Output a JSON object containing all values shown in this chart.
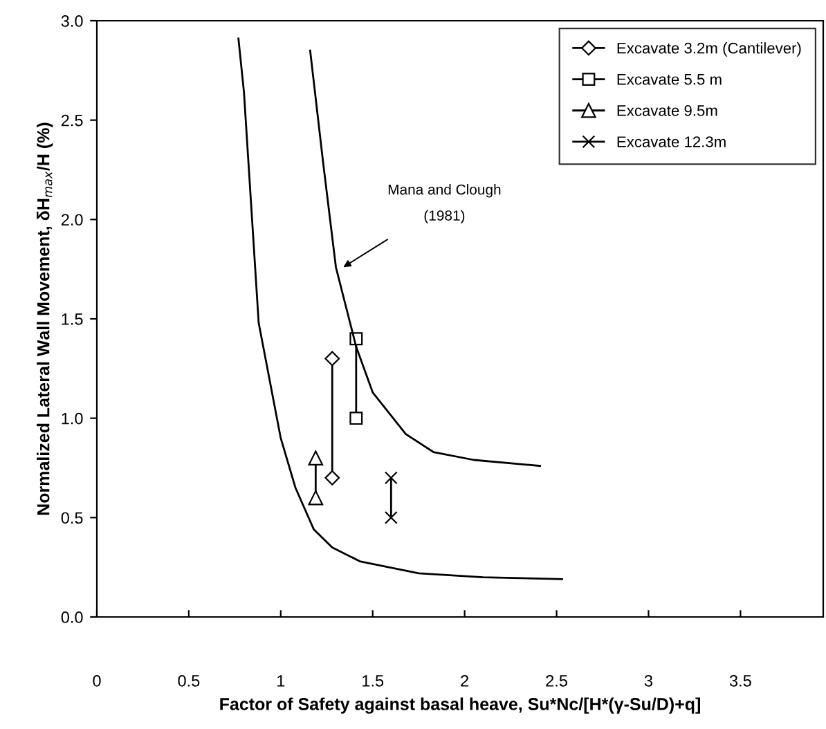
{
  "chart_data": {
    "type": "line",
    "xlabel": "Factor of Safety against basal heave, Su*Nc/[H*(γ-Su/D)+q]",
    "ylabel": "Normalized Lateral Wall Movement, δH$_{max}$/H (%)",
    "series": [
      {
        "name": "Excavate 3.2m (Cantilever)",
        "color": "#000000",
        "marker": "diamond",
        "x": [
          1.28,
          1.28
        ],
        "values": [
          1.3,
          0.7
        ]
      },
      {
        "name": "Excavate 5.5 m",
        "color": "#000000",
        "marker": "square",
        "x": [
          1.41,
          1.41
        ],
        "values": [
          1.4,
          1.0
        ]
      },
      {
        "name": "Excavate 9.5m",
        "color": "#000000",
        "marker": "triangle",
        "x": [
          1.19,
          1.19
        ],
        "values": [
          0.8,
          0.6
        ]
      },
      {
        "name": "Excavate 12.3m",
        "color": "#000000",
        "marker": "cross",
        "x": [
          1.6,
          1.6
        ],
        "values": [
          0.7,
          0.5
        ]
      },
      {
        "color": "#000000",
        "marker": "none",
        "x": [
          0.77,
          0.8,
          0.88,
          1.0,
          1.08,
          1.18,
          1.28,
          1.43,
          1.75,
          2.1,
          2.53
        ],
        "values": [
          2.91,
          2.64,
          1.48,
          0.9,
          0.65,
          0.44,
          0.35,
          0.28,
          0.22,
          0.2,
          0.19
        ]
      },
      {
        "color": "#000000",
        "marker": "none",
        "x": [
          1.16,
          1.23,
          1.3,
          1.41,
          1.5,
          1.68,
          1.83,
          2.05,
          2.41
        ],
        "values": [
          2.85,
          2.29,
          1.76,
          1.36,
          1.13,
          0.92,
          0.83,
          0.79,
          0.76
        ]
      }
    ],
    "annotations": [
      {
        "text": "Mana and Clough\n(1981)",
        "x": 1.34,
        "y": 1.76
      }
    ],
    "xlim": [
      0,
      3.95
    ],
    "xticks": [
      0,
      0.5,
      1,
      1.5,
      2,
      2.5,
      3,
      3.5
    ],
    "ylim": [
      0,
      3.0
    ],
    "yticks": [
      {
        "value": 0,
        "label": "0.0"
      },
      {
        "value": 0.5,
        "label": "0.5"
      },
      {
        "value": 1.0,
        "label": "1.0"
      },
      {
        "value": 1.5,
        "label": "1.5"
      },
      {
        "value": 2.0,
        "label": "2.0"
      },
      {
        "value": 2.5,
        "label": "2.5"
      },
      {
        "value": 3.0,
        "label": "3.0"
      }
    ],
    "legend": "top right",
    "grid": false
  }
}
